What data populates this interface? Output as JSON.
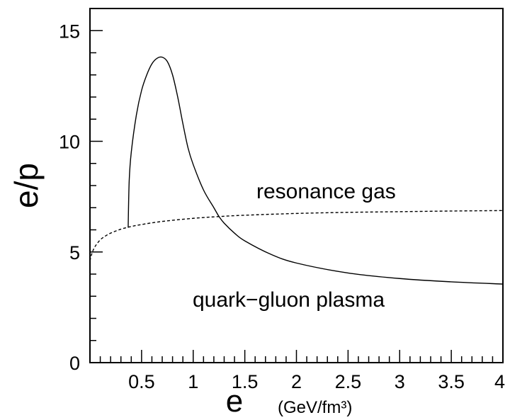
{
  "chart_data": {
    "type": "line",
    "xlabel": "e",
    "xunit": "(GeV/fm³)",
    "ylabel": "e/p",
    "xlim": [
      0,
      4
    ],
    "ylim": [
      0,
      16
    ],
    "x_ticks": [
      0.5,
      1,
      1.5,
      2,
      2.5,
      3,
      3.5,
      4
    ],
    "x_tick_labels": [
      "0.5",
      "1",
      "1.5",
      "2",
      "2.5",
      "3",
      "3.5",
      "4"
    ],
    "y_ticks": [
      0,
      5,
      10,
      15
    ],
    "y_tick_labels": [
      "0",
      "5",
      "10",
      "15"
    ],
    "grid": false,
    "series": [
      {
        "name": "resonance gas",
        "style": "dashed",
        "color": "#000000",
        "x": [
          0.0,
          0.02,
          0.05,
          0.1,
          0.15,
          0.2,
          0.3,
          0.4,
          0.5,
          0.7,
          1.0,
          1.25,
          1.5,
          2.0,
          2.5,
          3.0,
          3.5,
          4.0
        ],
        "y": [
          4.6,
          4.95,
          5.25,
          5.55,
          5.72,
          5.85,
          6.03,
          6.15,
          6.24,
          6.38,
          6.52,
          6.6,
          6.66,
          6.74,
          6.79,
          6.82,
          6.85,
          6.87
        ]
      },
      {
        "name": "quark–gluon plasma",
        "style": "solid",
        "color": "#000000",
        "x": [
          0.37,
          0.38,
          0.4,
          0.45,
          0.5,
          0.55,
          0.6,
          0.65,
          0.7,
          0.75,
          0.8,
          0.85,
          0.9,
          0.95,
          1.0,
          1.1,
          1.2,
          1.25,
          1.3,
          1.4,
          1.5,
          1.75,
          2.0,
          2.5,
          3.0,
          3.5,
          4.0
        ],
        "y": [
          6.1,
          8.2,
          9.5,
          11.2,
          12.3,
          13.0,
          13.5,
          13.75,
          13.8,
          13.6,
          13.0,
          12.0,
          10.8,
          9.7,
          8.95,
          7.8,
          7.0,
          6.6,
          6.3,
          5.85,
          5.5,
          4.9,
          4.5,
          4.05,
          3.8,
          3.65,
          3.55
        ]
      }
    ],
    "annotations": [
      "resonance gas",
      "quark−gluon plasma"
    ]
  }
}
